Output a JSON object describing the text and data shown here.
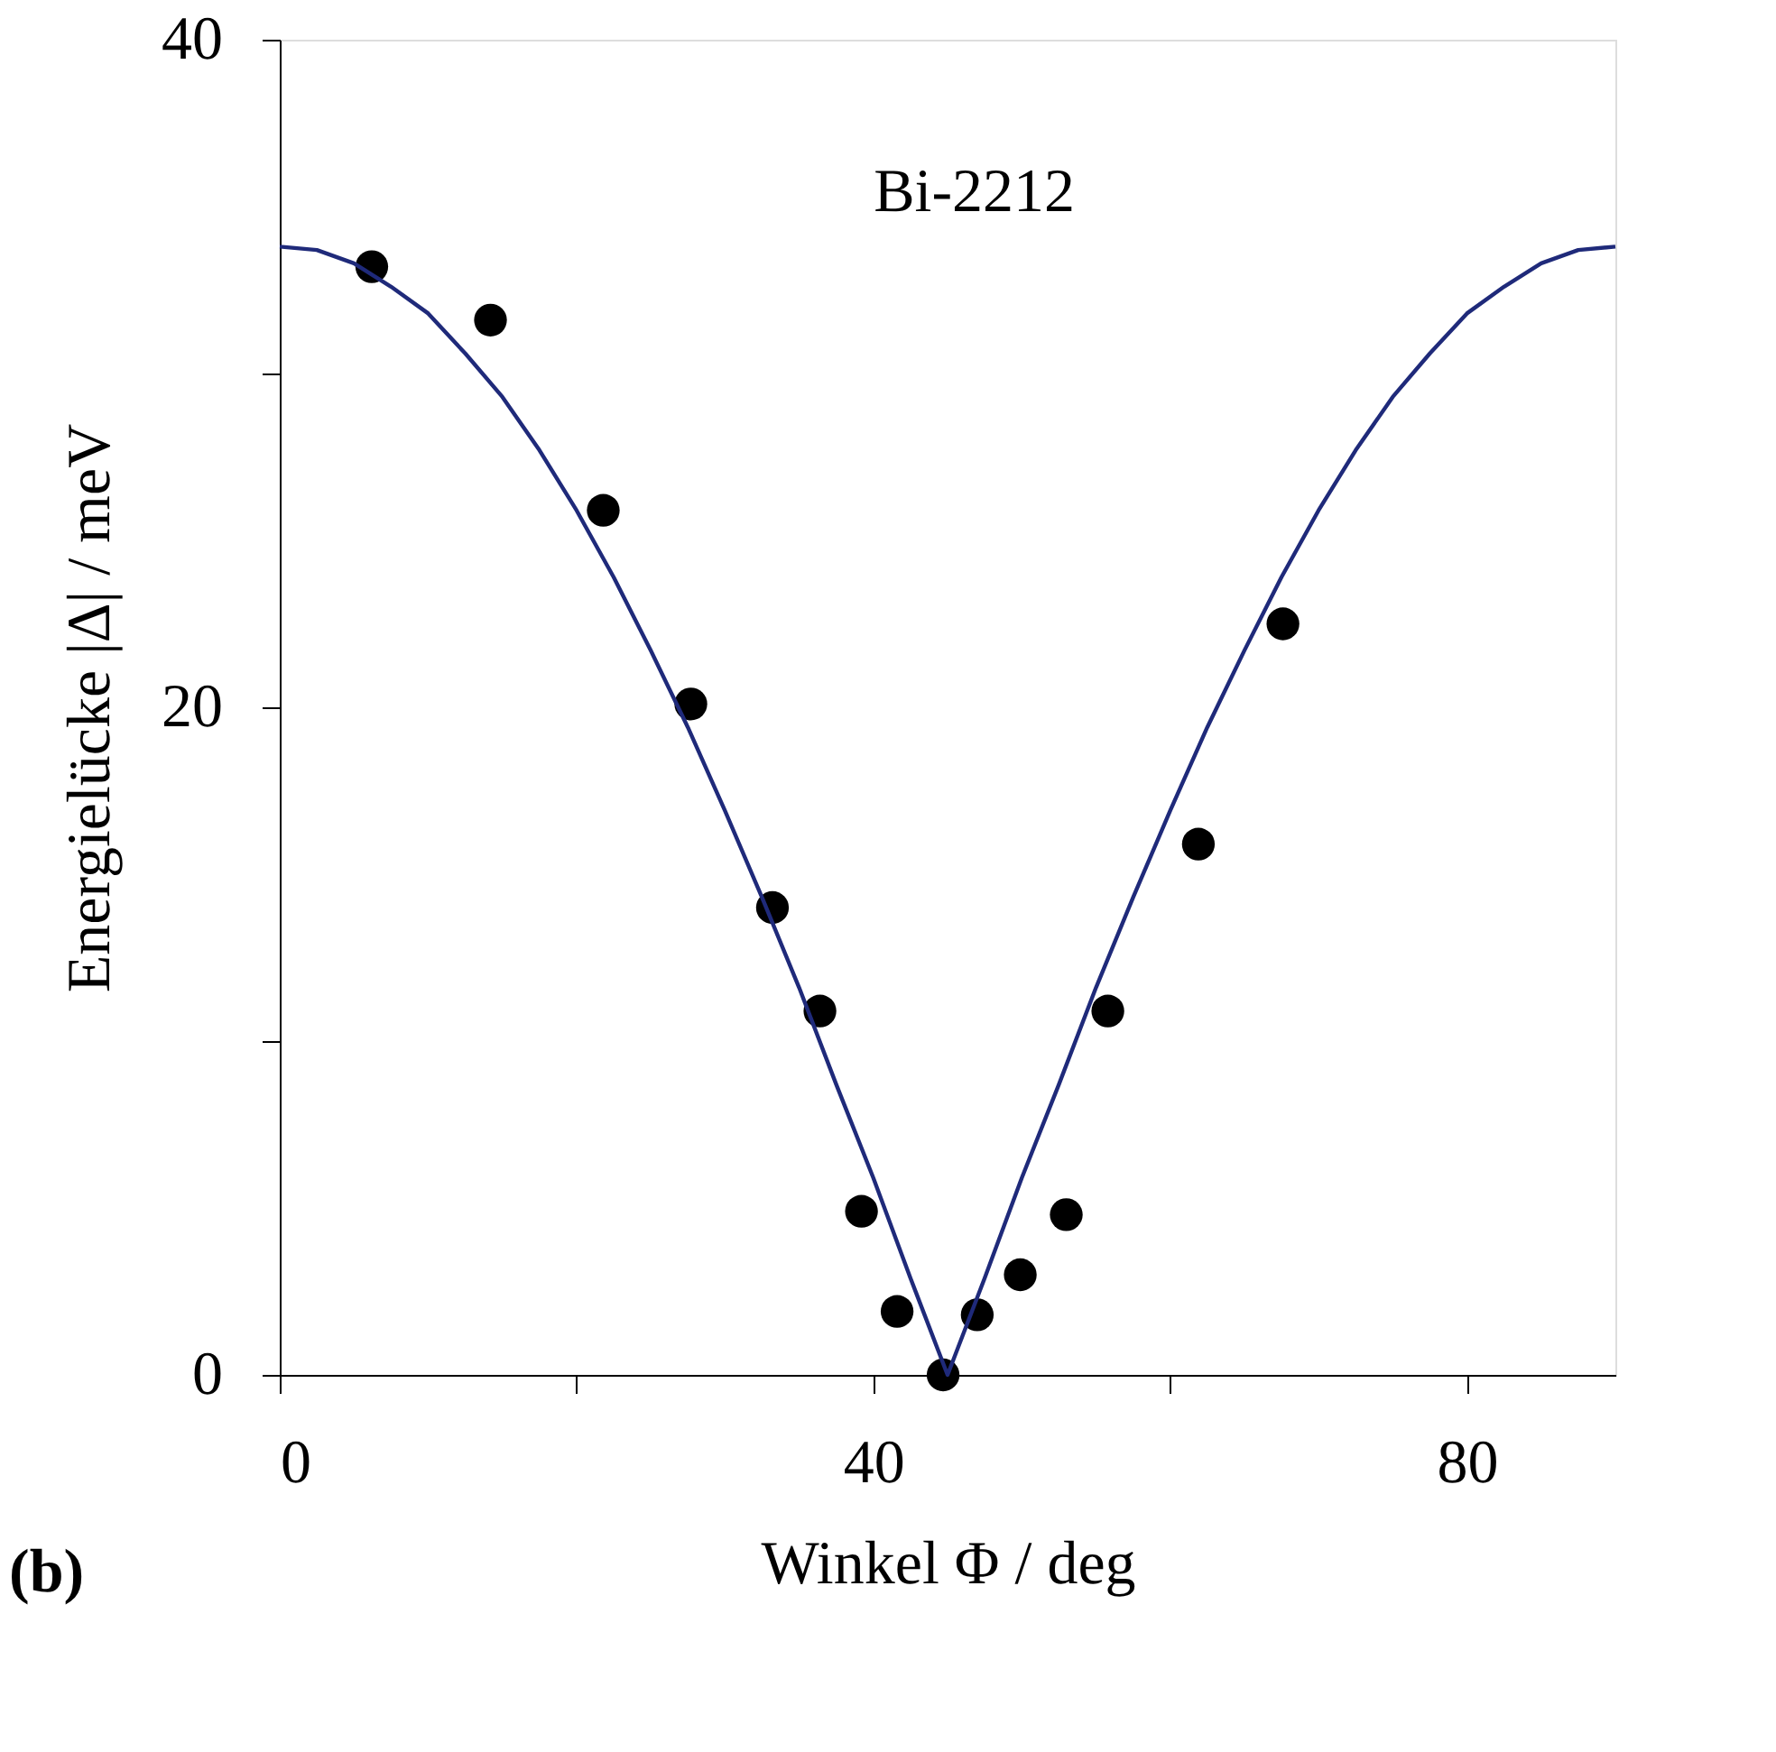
{
  "chart_data": {
    "type": "scatter",
    "xlabel": "Winkel Φ / deg",
    "ylabel": "Energielücke  |Δ| / meV",
    "annotations": [
      "Bi-2212",
      "(b)"
    ],
    "xlim": [
      0,
      90
    ],
    "ylim": [
      0,
      40
    ],
    "xticks": [
      0,
      {
        "value": 20,
        "label": null
      },
      40,
      {
        "value": 60,
        "label": null
      },
      80
    ],
    "yticks": [
      0,
      {
        "value": 10,
        "label": null
      },
      20,
      {
        "value": 30,
        "label": null
      },
      40
    ],
    "grid": false,
    "series": [
      {
        "type": "line",
        "color": "#1f2a7a",
        "x": [
          0,
          2.5,
          5,
          7.5,
          10,
          12.5,
          15,
          17.5,
          20,
          22.5,
          25,
          27.5,
          30,
          32.5,
          35,
          37.5,
          40,
          42.5,
          45,
          47.5,
          50,
          52.5,
          55,
          57.5,
          60,
          62.5,
          65,
          67.5,
          70,
          72.5,
          75,
          77.5,
          80,
          82.5,
          85,
          87.5,
          90
        ],
        "values": [
          33.8,
          33.7,
          33.3,
          32.6,
          31.8,
          30.6,
          29.3,
          27.7,
          25.9,
          23.9,
          21.7,
          19.4,
          16.9,
          14.3,
          11.6,
          8.7,
          5.9,
          2.9,
          0,
          2.9,
          5.9,
          8.7,
          11.6,
          14.3,
          16.9,
          19.4,
          21.7,
          23.9,
          25.9,
          27.7,
          29.3,
          30.6,
          31.8,
          32.6,
          33.3,
          33.7,
          33.8
        ]
      },
      {
        "marker": "circle",
        "color": "#000000",
        "x": [
          6.2,
          14.2,
          21.8,
          27.7,
          33.2,
          36.4,
          39.2,
          41.6,
          44.7,
          47.0,
          49.9,
          53.0,
          55.8,
          61.9,
          67.6
        ],
        "values": [
          33.2,
          31.6,
          25.9,
          20.1,
          14.0,
          10.9,
          4.9,
          1.9,
          0,
          1.8,
          3.0,
          4.8,
          10.9,
          15.9,
          22.5
        ]
      }
    ]
  }
}
